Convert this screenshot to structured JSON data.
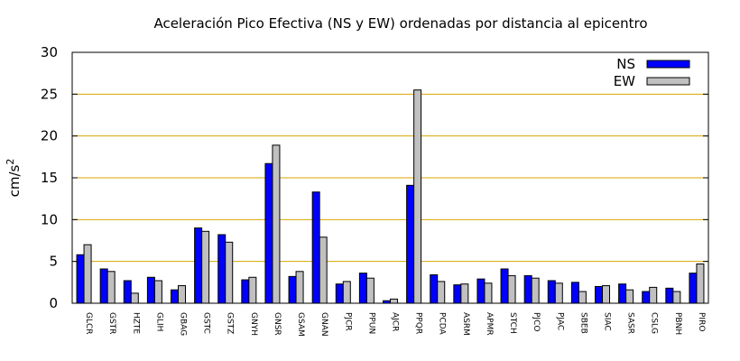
{
  "chart_data": {
    "type": "bar",
    "title": "Aceleración Pico Efectiva (NS y EW) ordenadas por distancia al epicentro",
    "ylabel": "cm/s",
    "ylabel_superscript": "2",
    "xlabel": "",
    "ylim": [
      0,
      30
    ],
    "yticks": [
      "0",
      "5",
      "10",
      "15",
      "20",
      "25",
      "30"
    ],
    "grid": "horizontal",
    "legend_position": "top-right",
    "categories": [
      "GLCR",
      "GSTR",
      "HZTE",
      "GLIH",
      "GBAG",
      "GSTC",
      "GSTZ",
      "GNYH",
      "GNSR",
      "GSAM",
      "GNAN",
      "PJCR",
      "PPUN",
      "AJCR",
      "PPQR",
      "PCDA",
      "ASRM",
      "APMR",
      "STCH",
      "PJCO",
      "PJAC",
      "SBEB",
      "SIAC",
      "SASR",
      "CSLG",
      "PBNH",
      "PIRO"
    ],
    "series": [
      {
        "name": "NS",
        "color": "#0000ff",
        "values": [
          5.8,
          4.1,
          2.7,
          3.1,
          1.6,
          9.0,
          8.2,
          2.8,
          16.7,
          3.2,
          13.3,
          2.3,
          3.6,
          0.3,
          14.1,
          3.4,
          2.2,
          2.9,
          4.1,
          3.3,
          2.7,
          2.5,
          2.0,
          2.3,
          1.4,
          1.8,
          3.6
        ]
      },
      {
        "name": "EW",
        "color": "#c0c0c0",
        "values": [
          7.0,
          3.8,
          1.2,
          2.7,
          2.1,
          8.6,
          7.3,
          3.1,
          18.9,
          3.8,
          7.9,
          2.6,
          3.0,
          0.5,
          25.5,
          2.6,
          2.3,
          2.4,
          3.3,
          3.0,
          2.4,
          1.4,
          2.1,
          1.6,
          1.9,
          1.4,
          4.7
        ]
      }
    ]
  }
}
